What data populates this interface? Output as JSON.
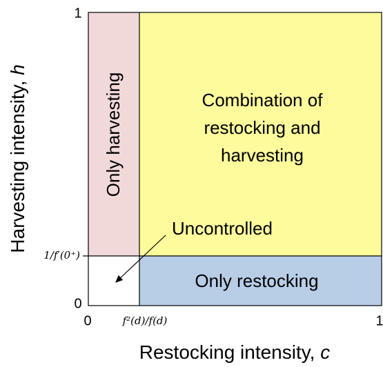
{
  "axes": {
    "x_label": {
      "text": "Restocking intensity,",
      "var": "c"
    },
    "y_label": {
      "text": "Harvesting intensity,",
      "var": "h"
    },
    "x_ticks": [
      "0",
      "f²(d)/f(d)",
      "1"
    ],
    "y_ticks": [
      "0",
      "1/f′(0⁺)",
      "1"
    ]
  },
  "regions": [
    {
      "label": [
        "Only harvesting"
      ]
    },
    {
      "label": [
        "Combination of",
        "restocking and",
        "harvesting"
      ]
    },
    {
      "label": [
        "Only restocking"
      ]
    },
    {
      "label": [
        "Uncontrolled"
      ]
    }
  ]
}
